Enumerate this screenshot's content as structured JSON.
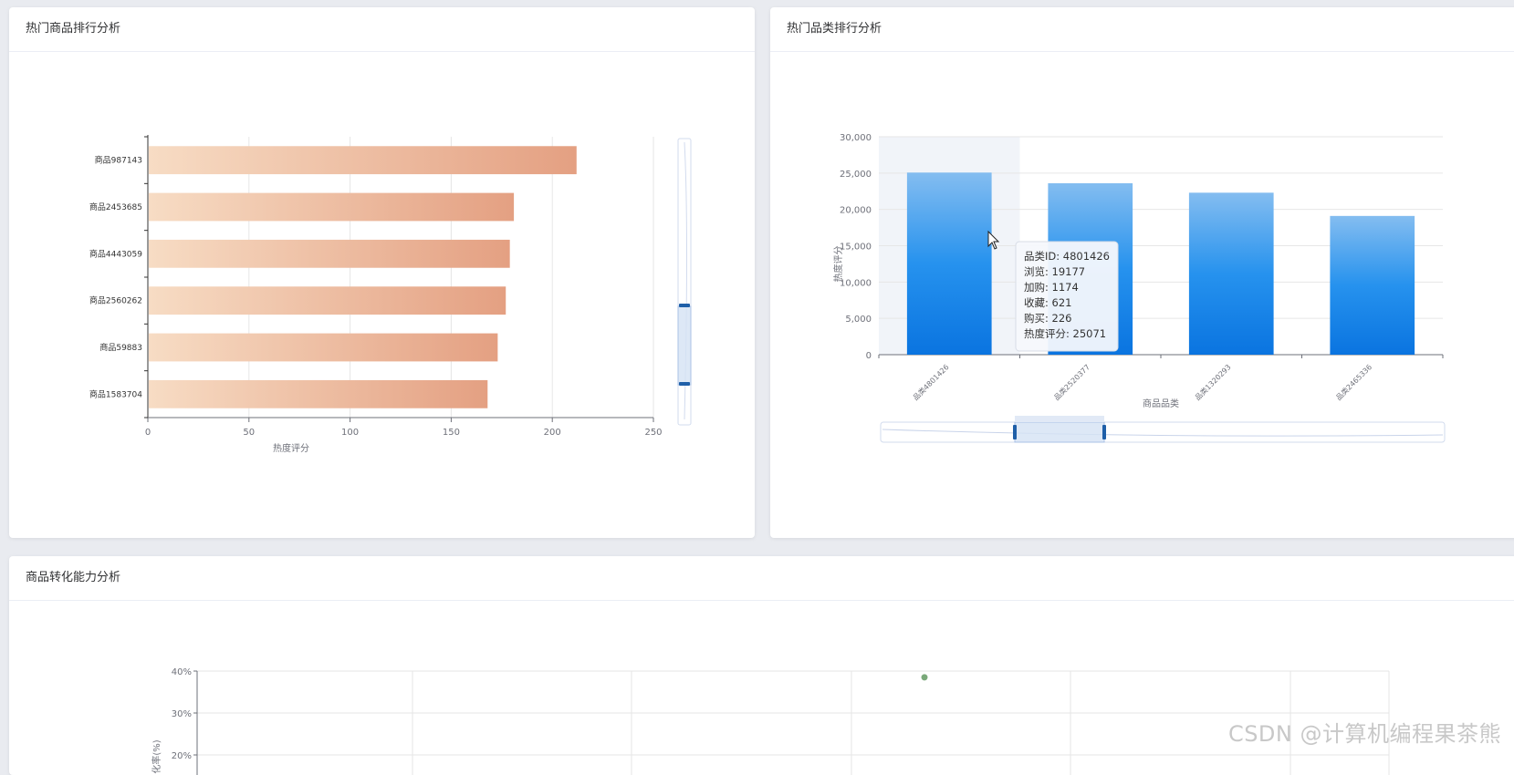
{
  "cards": {
    "hot_products_title": "热门商品排行分析",
    "hot_categories_title": "热门品类排行分析",
    "conversion_title": "商品转化能力分析"
  },
  "chart_data": [
    {
      "type": "bar",
      "orientation": "horizontal",
      "categories": [
        "商品987143",
        "商品2453685",
        "商品4443059",
        "商品2560262",
        "商品59883",
        "商品1583704"
      ],
      "values": [
        212,
        181,
        179,
        177,
        173,
        168
      ],
      "xlabel": "热度评分",
      "xlim": [
        0,
        250
      ],
      "xticks": [
        0,
        50,
        100,
        150,
        200,
        250
      ],
      "grid": true,
      "colors": {
        "bar_start": "#f7dcc4",
        "bar_end": "#e4a082",
        "datazoom_handle": "#1f5fa8"
      }
    },
    {
      "type": "bar",
      "categories": [
        "品类4801426",
        "品类2520377",
        "品类1320293",
        "品类2465336"
      ],
      "values": [
        25071,
        23600,
        22300,
        19100
      ],
      "xlabel": "商品品类",
      "ylabel": "热度评分",
      "ylim": [
        0,
        30000
      ],
      "yticks": [
        "0",
        "5,000",
        "10,000",
        "15,000",
        "20,000",
        "25,000",
        "30,000"
      ],
      "grid": true,
      "colors": {
        "bar_top": "#84bdf0",
        "bar_bottom": "#0a74e0",
        "datazoom_handle": "#1f5fa8"
      },
      "tooltip": {
        "lines": [
          "品类ID: 4801426",
          "浏览: 19177",
          "加购: 1174",
          "收藏: 621",
          "购买: 226",
          "热度评分: 25071"
        ]
      }
    },
    {
      "type": "scatter",
      "ylabel": "化率(%)",
      "yticks": [
        "40%",
        "30%",
        "20%"
      ],
      "points": [
        {
          "y": 38.5
        }
      ],
      "colors": {
        "point": "#7aa97a"
      }
    }
  ],
  "watermark": "CSDN @计算机编程果茶熊"
}
